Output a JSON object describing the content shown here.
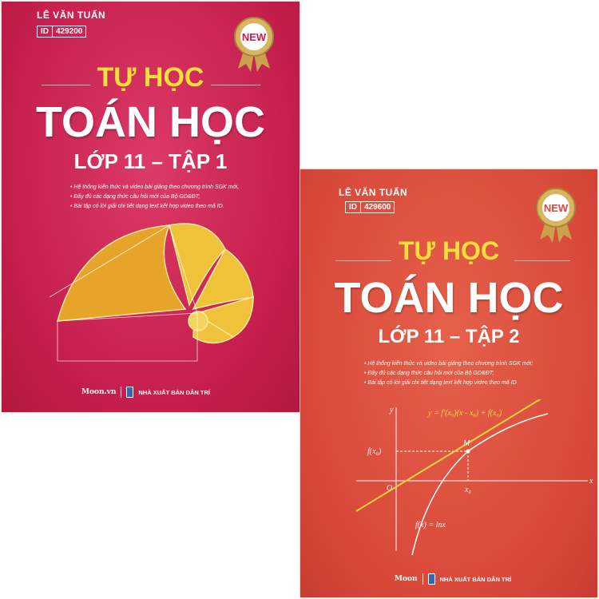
{
  "books": [
    {
      "author": "LÊ VĂN TUẤN",
      "id_label": "ID",
      "id_value": "429200",
      "badge": "NEW",
      "title_top": "TỰ HỌC",
      "title_main": "TOÁN HỌC",
      "subtitle": "LỚP 11 – TẬP 1",
      "bullets": [
        "Hệ thống kiến thức và video bài giảng theo chương trình SGK mới,",
        "Đầy đủ các dạng thức câu hỏi mới của Bộ GD&ĐT;",
        "Bài tập có lời giải chi tiết dạng text kết hợp video theo mã ID."
      ],
      "logo": "Moon.vn",
      "publisher": "NHÀ XUẤT BẢN DÂN TRÍ",
      "color": "#c41e4c"
    },
    {
      "author": "LÊ VĂN TUẤN",
      "id_label": "ID",
      "id_value": "429600",
      "badge": "NEW",
      "title_top": "TỰ HỌC",
      "title_main": "TOÁN HỌC",
      "subtitle": "LỚP 11 – TẬP 2",
      "bullets": [
        "Hệ thống kiến thức và video bài giảng theo chương trình SGK mới;",
        "Đầy đủ các dạng thức câu hỏi mới của Bộ GD&ĐT;",
        "Bài tập có lời giải chi tiết dạng text kết hợp video theo mã ID"
      ],
      "logo": "Moon",
      "publisher": "NHÀ XUẤT BẢN DÂN TRÍ",
      "color": "#d9493a",
      "graph": {
        "tangent": "y = f′(x₀)(x - x₀) + f(x₀)",
        "y_axis": "y",
        "x_axis": "x",
        "origin": "O",
        "point": "M",
        "fx0": "f(x₀)",
        "x0": "x₀",
        "curve": "f(x) = lnx"
      }
    }
  ]
}
